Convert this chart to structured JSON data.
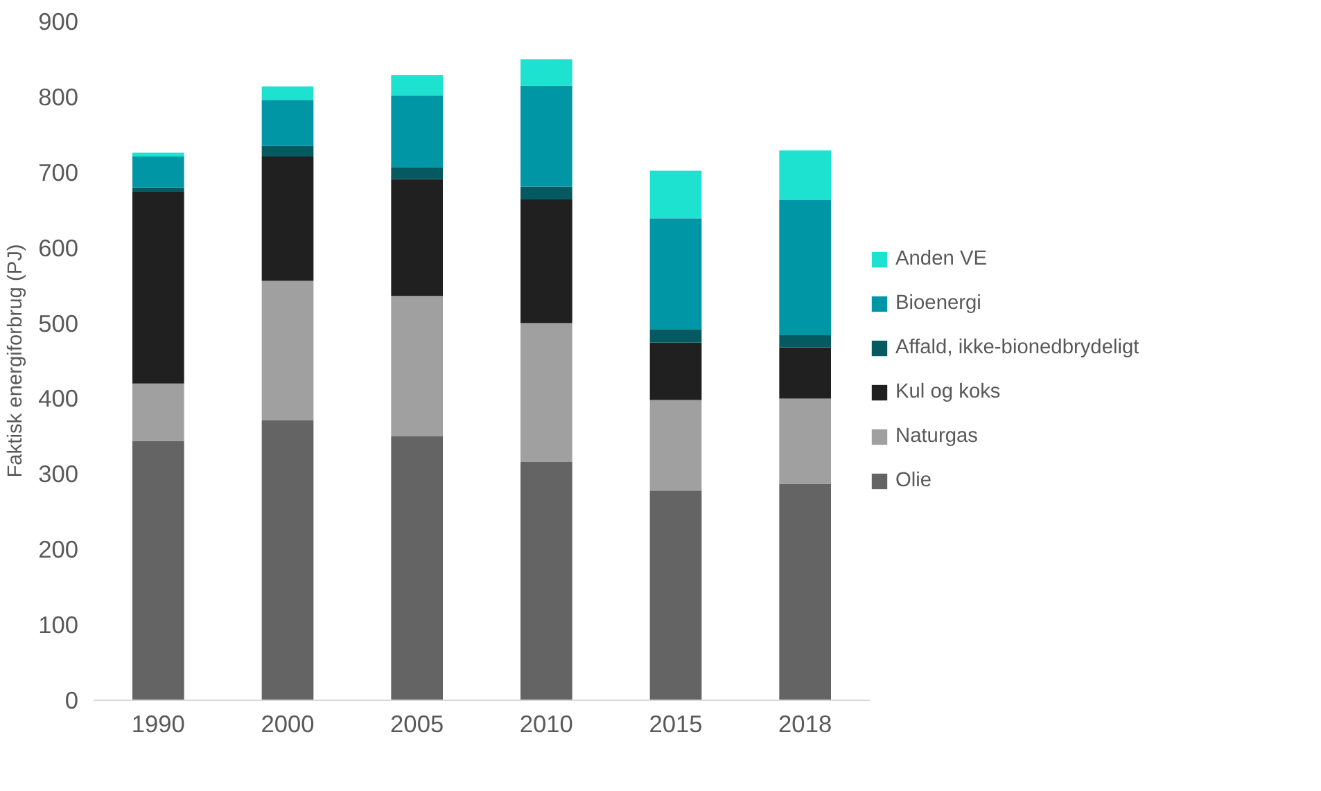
{
  "chart_data": {
    "type": "bar",
    "stacked": true,
    "ylabel": "Faktisk energiforbrug (PJ)",
    "categories": [
      "1990",
      "2000",
      "2005",
      "2010",
      "2015",
      "2018"
    ],
    "series": [
      {
        "name": "Olie",
        "color": "#646464",
        "values": [
          344,
          371,
          350,
          316,
          278,
          287
        ]
      },
      {
        "name": "Naturgas",
        "color": "#a0a0a0",
        "values": [
          76,
          185,
          186,
          184,
          120,
          113
        ]
      },
      {
        "name": "Kul og koks",
        "color": "#202020",
        "values": [
          254,
          165,
          155,
          164,
          76,
          68
        ]
      },
      {
        "name": "Affald, ikke-bionedbrydeligt",
        "color": "#045a60",
        "values": [
          6,
          14,
          16,
          17,
          18,
          16
        ]
      },
      {
        "name": "Bioenergi",
        "color": "#0096a5",
        "values": [
          41,
          61,
          95,
          134,
          147,
          179
        ]
      },
      {
        "name": "Anden VE",
        "color": "#1de2d0",
        "values": [
          5,
          18,
          27,
          35,
          63,
          66
        ]
      }
    ],
    "ylim": [
      0,
      900
    ],
    "yticks": [
      0,
      100,
      200,
      300,
      400,
      500,
      600,
      700,
      800,
      900
    ],
    "grid": false,
    "legend": "right"
  }
}
